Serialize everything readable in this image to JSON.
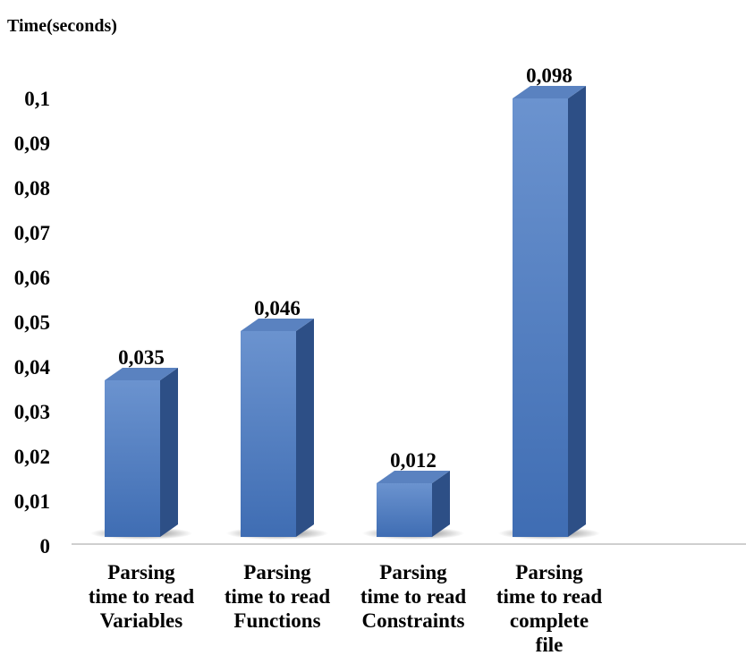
{
  "chart_data": {
    "type": "bar",
    "ylabel": "Time(seconds)",
    "xlabel": "",
    "ylim": [
      0,
      0.1
    ],
    "yticks": [
      "0",
      "0,01",
      "0,02",
      "0,03",
      "0,04",
      "0,05",
      "0,06",
      "0,07",
      "0,08",
      "0,09",
      "0,1"
    ],
    "categories": [
      [
        "Parsing",
        "time to read",
        "Variables"
      ],
      [
        "Parsing",
        "time to read",
        "Functions"
      ],
      [
        "Parsing",
        "time to read",
        "Constraints"
      ],
      [
        "Parsing",
        "time to read",
        "complete",
        "file"
      ]
    ],
    "values": [
      0.035,
      0.046,
      0.012,
      0.098
    ],
    "value_labels": [
      "0,035",
      "0,046",
      "0,012",
      "0,098"
    ],
    "grid": false,
    "legend": "none",
    "colors": {
      "bar_front_top": "#6b93cf",
      "bar_front_bottom": "#3f6db3",
      "bar_side": "#2d4f86",
      "bar_top": "#5a82c0",
      "axis": "#bfbfbf"
    }
  }
}
